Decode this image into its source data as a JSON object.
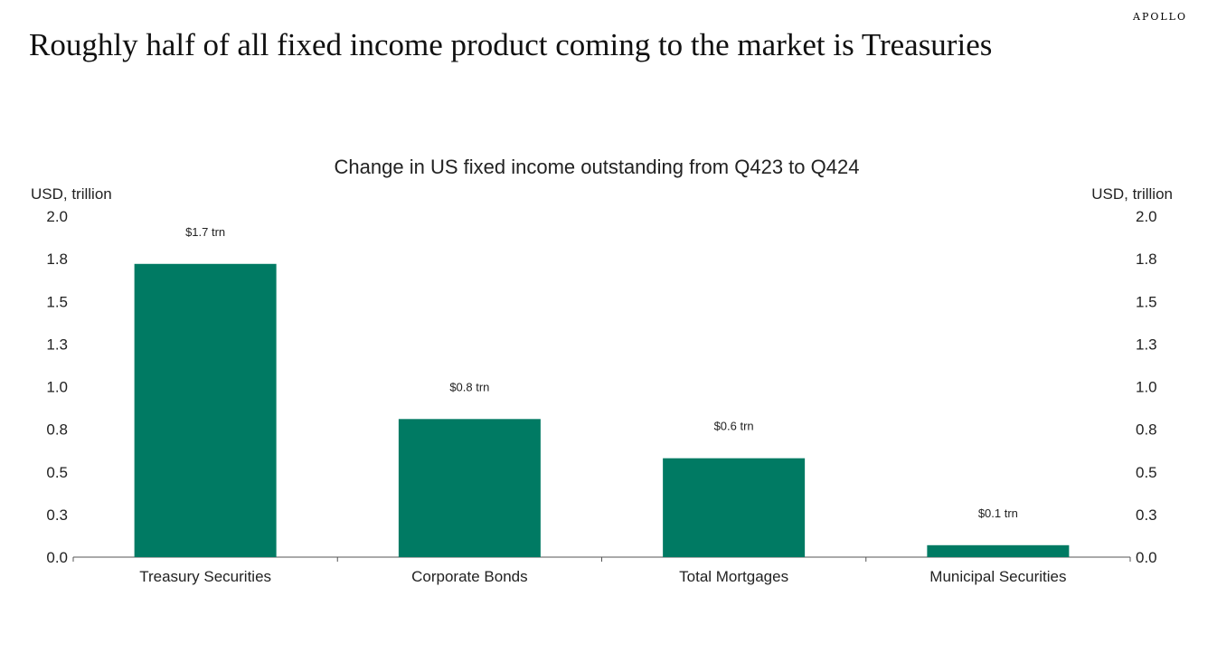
{
  "brand": "APOLLO",
  "headline": "Roughly half of all fixed income product coming to the market is Treasuries",
  "chart_data": {
    "type": "bar",
    "title": "Change in US fixed income outstanding from Q423 to Q424",
    "ylabel_left": "USD, trillion",
    "ylabel_right": "USD, trillion",
    "categories": [
      "Treasury Securities",
      "Corporate Bonds",
      "Total Mortgages",
      "Municipal Securities"
    ],
    "values": [
      1.72,
      0.81,
      0.58,
      0.07
    ],
    "data_labels": [
      "$1.7 trn",
      "$0.8 trn",
      "$0.6 trn",
      "$0.1 trn"
    ],
    "yticks": [
      0.0,
      0.25,
      0.5,
      0.75,
      1.0,
      1.25,
      1.5,
      1.75,
      2.0
    ],
    "ytick_labels": [
      "0.0",
      "0.3",
      "0.5",
      "0.8",
      "1.0",
      "1.3",
      "1.5",
      "1.8",
      "2.0"
    ],
    "ylim": [
      0,
      2.0
    ],
    "bar_color": "#007A63",
    "grid": false,
    "legend": "none"
  }
}
